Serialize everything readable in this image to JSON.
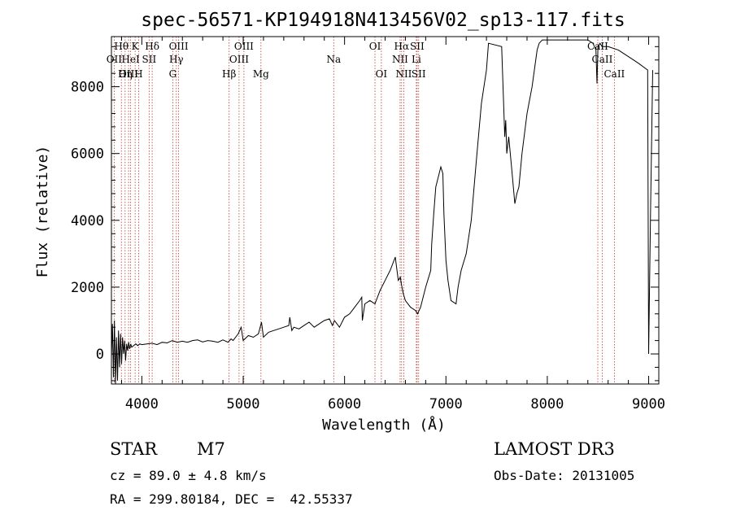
{
  "chart_data": {
    "type": "line",
    "title": "spec-56571-KP194918N413456V02_sp13-117.fits",
    "xlabel": "Wavelength (Å)",
    "ylabel": "Flux (relative)",
    "xlim": [
      3700,
      9100
    ],
    "ylim": [
      -900,
      9500
    ],
    "x_ticks": [
      4000,
      5000,
      6000,
      7000,
      8000,
      9000
    ],
    "y_ticks": [
      0,
      2000,
      4000,
      6000,
      8000
    ],
    "series": [
      {
        "name": "flux",
        "x": [
          3700,
          3710,
          3720,
          3730,
          3740,
          3750,
          3760,
          3770,
          3780,
          3790,
          3800,
          3810,
          3820,
          3830,
          3840,
          3850,
          3860,
          3870,
          3880,
          3890,
          3900,
          3920,
          3940,
          3960,
          3980,
          4000,
          4050,
          4100,
          4150,
          4200,
          4250,
          4300,
          4350,
          4400,
          4450,
          4500,
          4550,
          4600,
          4650,
          4700,
          4750,
          4800,
          4850,
          4880,
          4900,
          4950,
          4980,
          5000,
          5050,
          5100,
          5150,
          5180,
          5200,
          5250,
          5300,
          5350,
          5400,
          5450,
          5460,
          5480,
          5500,
          5550,
          5600,
          5650,
          5700,
          5750,
          5800,
          5850,
          5880,
          5900,
          5950,
          6000,
          6050,
          6100,
          6150,
          6170,
          6175,
          6200,
          6250,
          6300,
          6350,
          6400,
          6450,
          6500,
          6530,
          6550,
          6560,
          6580,
          6600,
          6650,
          6700,
          6720,
          6750,
          6800,
          6850,
          6860,
          6880,
          6900,
          6950,
          6970,
          6980,
          7000,
          7020,
          7050,
          7100,
          7120,
          7150,
          7200,
          7250,
          7300,
          7350,
          7400,
          7420,
          7550,
          7580,
          7590,
          7600,
          7620,
          7650,
          7680,
          7700,
          7720,
          7750,
          7800,
          7850,
          7900,
          7920,
          7950,
          8000,
          8050,
          8100,
          8150,
          8200,
          8300,
          8400,
          8450,
          8480,
          8490,
          8500,
          8520,
          8540,
          8600,
          8700,
          8800,
          8900,
          8990,
          9000,
          9020,
          9040
        ],
        "y": [
          -100,
          900,
          -700,
          1000,
          -900,
          500,
          -800,
          700,
          -400,
          600,
          -300,
          500,
          0,
          400,
          -200,
          300,
          100,
          350,
          150,
          300,
          200,
          250,
          300,
          250,
          300,
          280,
          300,
          320,
          280,
          350,
          330,
          400,
          350,
          380,
          350,
          400,
          420,
          360,
          400,
          380,
          350,
          420,
          350,
          450,
          400,
          600,
          800,
          400,
          550,
          500,
          600,
          950,
          500,
          650,
          700,
          750,
          800,
          850,
          1100,
          700,
          800,
          750,
          850,
          950,
          800,
          900,
          1000,
          1050,
          850,
          1000,
          800,
          1100,
          1200,
          1400,
          1600,
          1700,
          1000,
          1500,
          1600,
          1500,
          1900,
          2200,
          2500,
          2900,
          2200,
          2300,
          2100,
          1800,
          1600,
          1400,
          1300,
          1200,
          1400,
          2000,
          2500,
          3300,
          4200,
          5000,
          5600,
          5400,
          4200,
          2800,
          2200,
          1600,
          1500,
          2000,
          2500,
          3000,
          4000,
          5800,
          7500,
          8500,
          9300,
          9200,
          6500,
          7000,
          6000,
          6500,
          5500,
          4500,
          4800,
          5000,
          6000,
          7200,
          8000,
          9100,
          9300,
          9400,
          9400,
          9400,
          9400,
          9400,
          9400,
          9400,
          9400,
          9300,
          9100,
          8100,
          9200,
          9300,
          9200,
          9200,
          9100,
          8900,
          8700,
          8500,
          0,
          4500,
          8500
        ]
      }
    ],
    "emission_lines": [
      {
        "label": "Hθ",
        "wl": 3798,
        "row": 0
      },
      {
        "label": "K",
        "wl": 3934,
        "row": 0
      },
      {
        "label": "Hδ",
        "wl": 4102,
        "row": 0
      },
      {
        "label": "OIII",
        "wl": 4363,
        "row": 0
      },
      {
        "label": "OIII",
        "wl": 5007,
        "row": 0
      },
      {
        "label": "OI",
        "wl": 6300,
        "row": 0
      },
      {
        "label": "Hα",
        "wl": 6563,
        "row": 0
      },
      {
        "label": "SII",
        "wl": 6716,
        "row": 0
      },
      {
        "label": "CaII",
        "wl": 8498,
        "row": 0
      },
      {
        "label": "OII",
        "wl": 3727,
        "row": 1
      },
      {
        "label": "HeI",
        "wl": 3889,
        "row": 1
      },
      {
        "label": "SII",
        "wl": 4072,
        "row": 1
      },
      {
        "label": "Hγ",
        "wl": 4340,
        "row": 1
      },
      {
        "label": "OIII",
        "wl": 4959,
        "row": 1
      },
      {
        "label": "Na",
        "wl": 5893,
        "row": 1
      },
      {
        "label": "NII",
        "wl": 6548,
        "row": 1
      },
      {
        "label": "Li",
        "wl": 6708,
        "row": 1
      },
      {
        "label": "CaII",
        "wl": 8542,
        "row": 1
      },
      {
        "label": "OIII",
        "wl": 3869,
        "row": 2
      },
      {
        "label": "Hη",
        "wl": 3835,
        "row": 2
      },
      {
        "label": "H",
        "wl": 3968,
        "row": 2
      },
      {
        "label": "G",
        "wl": 4305,
        "row": 2
      },
      {
        "label": "Hβ",
        "wl": 4861,
        "row": 2
      },
      {
        "label": "Mg",
        "wl": 5175,
        "row": 2
      },
      {
        "label": "OI",
        "wl": 6363,
        "row": 2
      },
      {
        "label": "NII",
        "wl": 6584,
        "row": 2
      },
      {
        "label": "SII",
        "wl": 6731,
        "row": 2
      },
      {
        "label": "CaII",
        "wl": 8662,
        "row": 2
      }
    ]
  },
  "info": {
    "object_class": "STAR",
    "subclass": "M7",
    "survey": "LAMOST DR3",
    "cz": "cz = 89.0 ± 4.8 km/s",
    "obs_date": "Obs-Date: 20131005",
    "radec": "RA = 299.80184, DEC =  42.55337"
  }
}
